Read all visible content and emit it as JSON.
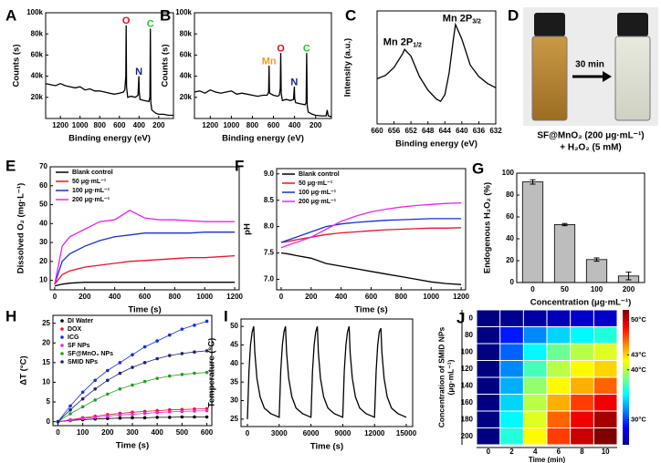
{
  "chart_data": [
    {
      "type": "line",
      "panel": "A",
      "xlabel": "Binding energy (eV)",
      "ylabel": "Counts (s)",
      "xlim": [
        1350,
        50
      ],
      "xticks": [
        1200,
        1000,
        800,
        600,
        400,
        200
      ],
      "ylim": [
        0,
        100000
      ],
      "yticks": [
        {
          "value": 20000,
          "label": "20k"
        },
        {
          "value": 40000,
          "label": "40k"
        },
        {
          "value": 60000,
          "label": "60k"
        },
        {
          "value": 80000,
          "label": "80k"
        },
        {
          "value": 100000,
          "label": "100k"
        }
      ],
      "color": "#000000",
      "x": [
        1350,
        1300,
        1250,
        1200,
        1150,
        1100,
        1050,
        1000,
        950,
        900,
        850,
        800,
        750,
        700,
        650,
        600,
        560,
        545,
        535,
        531,
        527,
        515,
        480,
        440,
        410,
        402,
        398,
        390,
        350,
        300,
        290,
        285,
        280,
        270,
        230,
        200,
        150,
        100,
        60,
        50
      ],
      "values": [
        33000,
        32000,
        31000,
        33000,
        31000,
        30000,
        29000,
        30000,
        27000,
        28000,
        26000,
        26000,
        25000,
        24000,
        23000,
        24000,
        25000,
        27000,
        40000,
        88000,
        30000,
        20000,
        21000,
        20000,
        22000,
        40000,
        25000,
        18000,
        17000,
        16000,
        20000,
        85000,
        15000,
        8000,
        5000,
        4000,
        4000,
        3000,
        3000,
        3000
      ],
      "annotations": [
        {
          "text": "O",
          "x": 531,
          "y": 92000,
          "color": "#e8001c"
        },
        {
          "text": "N",
          "x": 402,
          "y": 44000,
          "color": "#1a237e"
        },
        {
          "text": "C",
          "x": 285,
          "y": 89000,
          "color": "#22c322"
        }
      ]
    },
    {
      "type": "line",
      "panel": "B",
      "xlabel": "Binding energy (eV)",
      "ylabel": "Counts (s)",
      "xlim": [
        1350,
        50
      ],
      "xticks": [
        1200,
        1000,
        800,
        600,
        400,
        200
      ],
      "ylim": [
        0,
        100000
      ],
      "yticks": [
        {
          "value": 20000,
          "label": "20k"
        },
        {
          "value": 40000,
          "label": "40k"
        },
        {
          "value": 60000,
          "label": "60k"
        },
        {
          "value": 80000,
          "label": "80k"
        },
        {
          "value": 100000,
          "label": "100k"
        }
      ],
      "color": "#000000",
      "x": [
        1350,
        1300,
        1250,
        1200,
        1150,
        1100,
        1050,
        1000,
        950,
        900,
        850,
        800,
        750,
        700,
        660,
        646,
        642,
        638,
        600,
        560,
        545,
        535,
        531,
        527,
        515,
        480,
        440,
        410,
        402,
        398,
        390,
        350,
        300,
        290,
        285,
        280,
        270,
        230,
        200,
        150,
        100,
        90,
        80,
        60,
        50
      ],
      "values": [
        25000,
        26000,
        24000,
        27000,
        25000,
        24000,
        25000,
        26000,
        23000,
        24000,
        23000,
        22000,
        21000,
        22000,
        22000,
        25000,
        50000,
        24000,
        22000,
        21000,
        22000,
        28000,
        62000,
        24000,
        17000,
        18000,
        17000,
        18000,
        30000,
        19000,
        15000,
        14000,
        13000,
        15000,
        62000,
        12000,
        6000,
        4000,
        3000,
        2500,
        2500,
        8000,
        2500,
        2000,
        2000
      ],
      "annotations": [
        {
          "text": "Mn",
          "x": 642,
          "y": 54000,
          "color": "#f39a1e"
        },
        {
          "text": "O",
          "x": 531,
          "y": 66000,
          "color": "#e8001c"
        },
        {
          "text": "N",
          "x": 402,
          "y": 34000,
          "color": "#1a237e"
        },
        {
          "text": "C",
          "x": 285,
          "y": 66000,
          "color": "#22c322"
        }
      ]
    },
    {
      "type": "line",
      "panel": "C",
      "xlabel": "Binding energy (eV)",
      "ylabel": "Intensity (a.u.)",
      "xlim": [
        660,
        632
      ],
      "xticks": [
        660,
        656,
        652,
        648,
        644,
        640,
        636,
        632
      ],
      "ylim": [
        0,
        100
      ],
      "color": "#000000",
      "x": [
        660,
        658,
        656,
        654,
        653.5,
        652,
        650,
        648,
        646,
        645,
        644,
        643,
        642,
        641.5,
        640,
        638,
        636,
        634,
        632
      ],
      "values": [
        40,
        43,
        50,
        62,
        66,
        60,
        42,
        30,
        22,
        20,
        26,
        45,
        75,
        88,
        75,
        52,
        42,
        36,
        32
      ],
      "annotations": [
        {
          "text": "Mn 2P",
          "sub": "1/2",
          "x": 654,
          "y": 72,
          "color": "#000000"
        },
        {
          "text": "Mn 2P",
          "sub": "3/2",
          "x": 640,
          "y": 93,
          "color": "#000000"
        }
      ]
    },
    {
      "type": "line",
      "panel": "E",
      "xlabel": "Time (s)",
      "ylabel": "Dissolved O₂ (mg·L⁻¹)",
      "xlim": [
        -30,
        1230
      ],
      "xticks": [
        0,
        200,
        400,
        600,
        800,
        1000,
        1200
      ],
      "ylim": [
        5,
        70
      ],
      "yticks": [
        10,
        20,
        30,
        40,
        50,
        60,
        70
      ],
      "legend": "upper left",
      "x": [
        0,
        50,
        100,
        200,
        300,
        400,
        500,
        600,
        700,
        800,
        900,
        1000,
        1100,
        1200
      ],
      "series": [
        {
          "name": "Blank control",
          "color": "#000000",
          "values": [
            7,
            8,
            8.5,
            9,
            9,
            9,
            9,
            9,
            9,
            9,
            9,
            9,
            9,
            9
          ]
        },
        {
          "name": "50 μg·mL⁻¹",
          "color": "#e8132a",
          "values": [
            8,
            13,
            15,
            17,
            18,
            19,
            20,
            20.5,
            21,
            21.5,
            22,
            22,
            22.5,
            23
          ]
        },
        {
          "name": "100 μg·mL⁻¹",
          "color": "#1330d8",
          "values": [
            8,
            20,
            24,
            28,
            31,
            33,
            34,
            35,
            35,
            35,
            35,
            35.5,
            35.5,
            35.5
          ]
        },
        {
          "name": "200 μg·mL⁻¹",
          "color": "#ee22ee",
          "values": [
            8,
            28,
            33,
            37,
            41,
            42,
            47,
            43,
            42,
            42,
            41.5,
            41,
            41,
            41
          ]
        }
      ]
    },
    {
      "type": "line",
      "panel": "F",
      "xlabel": "Time (s)",
      "ylabel": "pH",
      "xlim": [
        -30,
        1230
      ],
      "xticks": [
        0,
        200,
        400,
        600,
        800,
        1000,
        1200
      ],
      "ylim": [
        6.8,
        9.1
      ],
      "yticks": [
        {
          "value": 7,
          "label": "7.0"
        },
        7.5,
        {
          "value": 8,
          "label": "8.0"
        },
        8.5,
        {
          "value": 9,
          "label": "9.0"
        }
      ],
      "legend": "upper left",
      "x": [
        0,
        50,
        100,
        200,
        300,
        400,
        500,
        600,
        700,
        800,
        900,
        1000,
        1100,
        1200
      ],
      "series": [
        {
          "name": "Blank control",
          "color": "#000000",
          "values": [
            7.5,
            7.48,
            7.45,
            7.4,
            7.3,
            7.25,
            7.2,
            7.15,
            7.1,
            7.05,
            7.0,
            6.95,
            6.92,
            6.9
          ]
        },
        {
          "name": "50 μg·mL⁻¹",
          "color": "#e8132a",
          "values": [
            7.7,
            7.72,
            7.75,
            7.8,
            7.85,
            7.88,
            7.9,
            7.92,
            7.94,
            7.95,
            7.96,
            7.97,
            7.97,
            7.98
          ]
        },
        {
          "name": "100 μg·mL⁻¹",
          "color": "#1330d8",
          "values": [
            7.7,
            7.75,
            7.8,
            7.9,
            8.0,
            8.05,
            8.08,
            8.1,
            8.12,
            8.13,
            8.14,
            8.15,
            8.15,
            8.15
          ]
        },
        {
          "name": "200 μg·mL⁻¹",
          "color": "#ee22ee",
          "values": [
            7.6,
            7.65,
            7.7,
            7.8,
            7.95,
            8.1,
            8.2,
            8.28,
            8.33,
            8.37,
            8.4,
            8.42,
            8.44,
            8.45
          ]
        }
      ]
    },
    {
      "type": "bar",
      "panel": "G",
      "xlabel": "Concentration (μg·mL⁻¹)",
      "ylabel": "Endogenous H₂O₂ (%)",
      "categories": [
        "0",
        "50",
        "100",
        "200"
      ],
      "values": [
        92,
        53,
        21,
        6
      ],
      "errors": [
        2,
        1,
        1.5,
        3.5
      ],
      "color": "#bdbdbd",
      "ylim": [
        0,
        100
      ],
      "yticks": [
        0,
        20,
        40,
        60,
        80,
        100
      ]
    },
    {
      "type": "line",
      "panel": "H",
      "xlabel": "Time (s)",
      "ylabel": "ΔT (°C)",
      "markers": true,
      "xlim": [
        -20,
        620
      ],
      "xticks": [
        0,
        100,
        200,
        300,
        400,
        500,
        600
      ],
      "ylim": [
        -1,
        27
      ],
      "yticks": [
        0,
        5,
        10,
        15,
        20,
        25
      ],
      "legend": "upper left",
      "x": [
        0,
        50,
        100,
        150,
        200,
        250,
        300,
        350,
        400,
        450,
        500,
        550,
        600
      ],
      "series": [
        {
          "name": "DI Water",
          "color": "#000000",
          "values": [
            0,
            0.3,
            0.5,
            0.7,
            0.8,
            0.9,
            1,
            1,
            1.1,
            1.1,
            1.2,
            1.2,
            1.2
          ]
        },
        {
          "name": "DOX",
          "color": "#e8132a",
          "values": [
            0,
            0.5,
            1,
            1.4,
            1.8,
            2.1,
            2.4,
            2.6,
            2.8,
            3,
            3.1,
            3.2,
            3.3
          ]
        },
        {
          "name": "ICG",
          "color": "#1330d8",
          "values": [
            0,
            4,
            7.5,
            10.5,
            13,
            15,
            17,
            19,
            20.5,
            22,
            23.5,
            24.5,
            25.5
          ]
        },
        {
          "name": "SF NPs",
          "color": "#ee22ee",
          "values": [
            0,
            0.4,
            0.8,
            1.1,
            1.4,
            1.7,
            1.9,
            2.1,
            2.3,
            2.5,
            2.6,
            2.7,
            2.8
          ]
        },
        {
          "name": "SF@MnO₂ NPs",
          "color": "#20a020",
          "values": [
            0,
            2,
            3.8,
            5.5,
            7,
            8.3,
            9.3,
            10.2,
            11,
            11.6,
            12,
            12.3,
            12.5
          ]
        },
        {
          "name": "SMID NPs",
          "color": "#1a237e",
          "values": [
            0,
            3,
            5.8,
            8.3,
            10.5,
            12.3,
            13.8,
            15,
            16,
            16.8,
            17.3,
            17.7,
            18
          ]
        }
      ]
    },
    {
      "type": "line",
      "panel": "I",
      "xlabel": "Time (s)",
      "ylabel": "Temperature (°C)",
      "xlim": [
        -600,
        15600
      ],
      "xticks": [
        0,
        3000,
        6000,
        9000,
        12000,
        15000
      ],
      "ylim": [
        23,
        52
      ],
      "yticks": [
        25,
        30,
        35,
        40,
        45,
        50
      ],
      "color": "#000000",
      "x": [
        0,
        150,
        300,
        450,
        600,
        700,
        900,
        1200,
        1600,
        2200,
        3000,
        3150,
        3300,
        3450,
        3600,
        3700,
        3900,
        4200,
        4600,
        5200,
        6000,
        6150,
        6300,
        6450,
        6600,
        6700,
        6900,
        7200,
        7600,
        8200,
        9000,
        9150,
        9300,
        9450,
        9600,
        9700,
        9900,
        10200,
        10600,
        11200,
        12000,
        12150,
        12300,
        12450,
        12600,
        12700,
        12900,
        13200,
        13600,
        14200,
        15000
      ],
      "values": [
        25,
        38,
        45,
        48.5,
        50,
        43,
        36,
        31,
        28,
        26.5,
        25.5,
        38,
        45,
        48.5,
        50,
        43,
        36,
        31,
        28,
        26.5,
        25.5,
        38,
        45,
        48.5,
        50,
        43,
        36,
        31,
        28,
        26.5,
        25.5,
        38,
        45,
        48.5,
        50,
        43,
        36,
        31,
        28,
        26.5,
        25.5,
        38,
        45,
        48.5,
        49.5,
        43,
        36,
        31,
        28,
        26.5,
        25.5
      ]
    },
    {
      "type": "heatmap",
      "panel": "J",
      "xlabel": "Time (min)",
      "ylabel": [
        "Concentration of SMID NPs",
        "(μg·mL⁻¹)"
      ],
      "xcategories": [
        "0",
        "2",
        "4",
        "6",
        "8",
        "10"
      ],
      "ycategories": [
        "0",
        "80",
        "100",
        "120",
        "140",
        "160",
        "180",
        "200"
      ],
      "clim": [
        25,
        52
      ],
      "cbticks": [
        {
          "value": 50,
          "label": "50°C"
        },
        {
          "value": 43,
          "label": "43°C"
        },
        {
          "value": 40,
          "label": "40°C"
        },
        {
          "value": 30,
          "label": "30°C"
        }
      ],
      "values": [
        [
          25,
          25.5,
          26,
          26.5,
          27,
          27
        ],
        [
          25,
          29,
          32,
          34,
          35,
          36
        ],
        [
          25,
          31,
          35,
          38,
          40,
          41
        ],
        [
          25,
          32,
          37,
          40,
          42,
          43
        ],
        [
          25,
          33,
          39,
          42,
          44,
          46
        ],
        [
          25,
          34,
          40,
          44,
          47,
          49
        ],
        [
          25,
          35,
          41,
          46,
          49,
          51
        ],
        [
          25,
          36,
          42,
          47,
          50,
          52
        ]
      ]
    }
  ],
  "photo": {
    "panel": "D",
    "arrow_label": "30 min",
    "caption": [
      "SF@MnO₂ (200 μg·mL⁻¹)",
      "+ H₂O₂ (5 mM)"
    ]
  }
}
